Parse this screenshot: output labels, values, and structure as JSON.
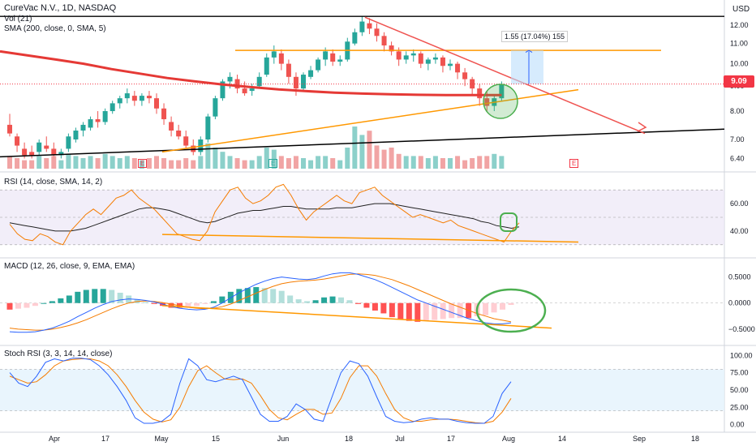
{
  "header": {
    "title": "CureVac N.V., 1D, NASDAQ",
    "vol": "Vol (21)",
    "sma": "SMA (200, close, 0, SMA, 5)",
    "currency": "USD"
  },
  "price_badge": {
    "value": "9.09",
    "color": "#f23645"
  },
  "measure_label": "1.55 (17.04%) 155",
  "panes": {
    "rsi": "RSI (14, close, SMA, 14, 2)",
    "macd": "MACD (12, 26, close, 9, EMA, EMA)",
    "stoch": "Stoch RSI (3, 3, 14, 14, close)"
  },
  "event_markers": {
    "earnings": "E",
    "split": "E",
    "dividend": "E"
  },
  "colors": {
    "up": "#26a69a",
    "down": "#ef5350",
    "sma200": "#e53935",
    "rsi": "#f57c00",
    "signal": "#222222",
    "macd": "#2962ff",
    "k": "#2962ff",
    "d": "#f57c00",
    "trend_orange": "#ff9800",
    "trend_red": "#ef5350",
    "trend_black": "#000000",
    "highlight": "#4caf50",
    "measure_fill": "#bbdefb"
  },
  "chart_data": [
    {
      "type": "candlestick",
      "title": "CureVac N.V., 1D, NASDAQ",
      "x_ticks": [
        "Apr",
        "17",
        "May",
        "15",
        "Jun",
        "18",
        "Jul",
        "17",
        "Aug",
        "14",
        "Sep",
        "18"
      ],
      "y_ticks": [
        12.0,
        11.0,
        10.0,
        9.0,
        8.0,
        7.0,
        6.4
      ],
      "y_scale": "log",
      "ylim": [
        6.1,
        12.8
      ],
      "candles": [
        [
          7.5,
          7.9,
          7.2,
          7.1
        ],
        [
          7.1,
          7.2,
          6.8,
          6.6
        ],
        [
          6.7,
          6.9,
          6.5,
          6.4
        ],
        [
          6.6,
          6.8,
          6.5,
          6.4
        ],
        [
          6.6,
          7.0,
          6.9,
          6.5
        ],
        [
          6.8,
          7.1,
          6.7,
          6.6
        ],
        [
          6.7,
          6.9,
          6.5,
          6.4
        ],
        [
          6.5,
          6.7,
          6.6,
          6.4
        ],
        [
          6.7,
          7.2,
          7.1,
          6.6
        ],
        [
          7.0,
          7.4,
          7.3,
          6.9
        ],
        [
          7.3,
          7.6,
          7.5,
          7.1
        ],
        [
          7.4,
          7.8,
          7.7,
          7.3
        ],
        [
          7.7,
          8.0,
          7.6,
          7.4
        ],
        [
          7.6,
          8.1,
          8.0,
          7.5
        ],
        [
          8.0,
          8.4,
          8.3,
          7.9
        ],
        [
          8.3,
          8.6,
          8.5,
          8.1
        ],
        [
          8.5,
          8.9,
          8.7,
          8.3
        ],
        [
          8.6,
          8.8,
          8.4,
          8.2
        ],
        [
          8.4,
          8.7,
          8.6,
          8.2
        ],
        [
          8.6,
          8.8,
          8.5,
          8.3
        ],
        [
          8.5,
          8.7,
          8.1,
          7.9
        ],
        [
          8.1,
          8.3,
          7.7,
          7.5
        ],
        [
          7.6,
          7.8,
          7.3,
          7.1
        ],
        [
          7.3,
          7.5,
          7.1,
          7.0
        ],
        [
          7.1,
          7.3,
          6.8,
          6.7
        ],
        [
          6.8,
          7.0,
          6.6,
          6.5
        ],
        [
          6.6,
          7.1,
          7.0,
          6.5
        ],
        [
          7.0,
          7.9,
          7.8,
          6.9
        ],
        [
          7.8,
          8.6,
          8.5,
          7.7
        ],
        [
          8.5,
          9.3,
          9.2,
          8.4
        ],
        [
          9.2,
          9.6,
          9.4,
          8.9
        ],
        [
          9.3,
          9.5,
          8.9,
          8.7
        ],
        [
          8.9,
          9.2,
          8.7,
          8.6
        ],
        [
          8.8,
          9.1,
          8.9,
          8.6
        ],
        [
          9.0,
          9.6,
          9.4,
          8.9
        ],
        [
          9.5,
          10.5,
          10.3,
          9.4
        ],
        [
          10.3,
          10.9,
          10.6,
          10.0
        ],
        [
          10.5,
          10.7,
          10.0,
          9.7
        ],
        [
          10.0,
          10.2,
          9.4,
          9.1
        ],
        [
          9.4,
          9.6,
          8.9,
          8.6
        ],
        [
          8.9,
          9.6,
          9.5,
          8.8
        ],
        [
          9.4,
          9.9,
          9.7,
          9.3
        ],
        [
          9.7,
          10.3,
          10.2,
          9.6
        ],
        [
          10.2,
          10.8,
          10.6,
          9.9
        ],
        [
          10.5,
          10.7,
          10.1,
          9.9
        ],
        [
          10.1,
          10.4,
          10.2,
          9.9
        ],
        [
          10.2,
          11.3,
          11.1,
          10.1
        ],
        [
          11.0,
          11.8,
          11.6,
          10.9
        ],
        [
          11.6,
          12.5,
          12.2,
          11.4
        ],
        [
          12.1,
          12.4,
          11.8,
          11.5
        ],
        [
          11.8,
          12.1,
          11.4,
          11.1
        ],
        [
          11.4,
          11.6,
          10.9,
          10.6
        ],
        [
          10.9,
          11.1,
          10.6,
          10.4
        ],
        [
          10.6,
          10.8,
          10.2,
          9.9
        ],
        [
          10.2,
          10.6,
          10.4,
          10.0
        ],
        [
          10.4,
          10.7,
          10.5,
          10.1
        ],
        [
          10.5,
          10.6,
          10.0,
          9.8
        ],
        [
          10.0,
          10.3,
          10.2,
          9.7
        ],
        [
          10.2,
          10.5,
          10.3,
          10.0
        ],
        [
          10.3,
          10.4,
          9.9,
          9.6
        ],
        [
          9.9,
          10.2,
          10.0,
          9.7
        ],
        [
          10.0,
          10.1,
          9.6,
          9.3
        ],
        [
          9.6,
          9.8,
          9.3,
          9.0
        ],
        [
          9.3,
          9.4,
          8.9,
          8.6
        ],
        [
          8.9,
          9.1,
          8.5,
          8.2
        ],
        [
          8.5,
          8.8,
          8.2,
          8.0
        ],
        [
          8.2,
          8.6,
          8.5,
          8.0
        ],
        [
          8.5,
          9.2,
          9.09,
          8.4
        ]
      ],
      "sma200": [
        10.6,
        10.4,
        10.2,
        10.0,
        9.75,
        9.55,
        9.35,
        9.2,
        9.07,
        8.96,
        8.86,
        8.79,
        8.73,
        8.69,
        8.66,
        8.64,
        8.63,
        8.63,
        8.63
      ]
    },
    {
      "type": "bar",
      "title": "Vol (21)",
      "volume": [
        0.3,
        0.25,
        0.2,
        0.2,
        0.3,
        0.25,
        0.3,
        0.2,
        0.35,
        0.3,
        0.25,
        0.3,
        0.25,
        0.35,
        0.3,
        0.25,
        0.3,
        0.25,
        0.2,
        0.25,
        0.3,
        0.25,
        0.2,
        0.2,
        0.25,
        0.2,
        0.3,
        0.6,
        0.5,
        0.4,
        0.3,
        0.25,
        0.2,
        0.2,
        0.3,
        0.5,
        0.45,
        0.3,
        0.25,
        0.3,
        0.25,
        0.2,
        0.3,
        0.3,
        0.25,
        0.2,
        0.5,
        1.0,
        0.8,
        0.9,
        0.55,
        0.45,
        0.5,
        0.35,
        0.3,
        0.3,
        0.3,
        0.25,
        0.3,
        0.25,
        0.25,
        0.3,
        0.2,
        0.25,
        0.3,
        0.3,
        0.35,
        0.3
      ]
    },
    {
      "type": "line",
      "title": "RSI (14, close, SMA, 14, 2)",
      "y_ticks": [
        60.0,
        40.0
      ],
      "ylim": [
        24,
        76
      ],
      "rsi": [
        45,
        38,
        34,
        33,
        38,
        36,
        32,
        30,
        40,
        46,
        52,
        56,
        52,
        58,
        64,
        66,
        70,
        64,
        60,
        56,
        50,
        44,
        38,
        36,
        34,
        33,
        40,
        54,
        62,
        70,
        72,
        64,
        60,
        62,
        66,
        72,
        74,
        66,
        56,
        48,
        54,
        58,
        62,
        66,
        62,
        60,
        68,
        70,
        72,
        66,
        62,
        58,
        54,
        50,
        52,
        50,
        48,
        46,
        48,
        44,
        42,
        40,
        38,
        36,
        34,
        32,
        40,
        46
      ],
      "signal": [
        46,
        45,
        44,
        43,
        42,
        41,
        40,
        40,
        40,
        41,
        42,
        44,
        46,
        48,
        50,
        52,
        54,
        56,
        57,
        57,
        56,
        55,
        53,
        51,
        49,
        47,
        46,
        47,
        49,
        51,
        53,
        54,
        55,
        55,
        56,
        57,
        58,
        58,
        57,
        56,
        56,
        56,
        56,
        57,
        57,
        57,
        58,
        59,
        60,
        60,
        60,
        59,
        58,
        57,
        56,
        55,
        54,
        53,
        52,
        51,
        50,
        49,
        47,
        46,
        44,
        43,
        42,
        43
      ]
    },
    {
      "type": "line",
      "title": "MACD (12, 26, close, 9, EMA, EMA)",
      "y_ticks": [
        0.5,
        0.0,
        -0.5
      ],
      "ylim": [
        -0.72,
        0.68
      ],
      "macd": [
        -0.55,
        -0.56,
        -0.56,
        -0.55,
        -0.52,
        -0.48,
        -0.42,
        -0.35,
        -0.26,
        -0.18,
        -0.1,
        -0.03,
        0.03,
        0.06,
        0.08,
        0.07,
        0.05,
        0.02,
        -0.02,
        -0.07,
        -0.1,
        -0.12,
        -0.13,
        -0.12,
        -0.08,
        0.0,
        0.1,
        0.2,
        0.28,
        0.36,
        0.42,
        0.47,
        0.5,
        0.48,
        0.46,
        0.45,
        0.47,
        0.52,
        0.56,
        0.58,
        0.58,
        0.55,
        0.5,
        0.45,
        0.38,
        0.3,
        0.22,
        0.14,
        0.06,
        0.0,
        -0.06,
        -0.12,
        -0.18,
        -0.24,
        -0.3,
        -0.34,
        -0.38,
        -0.4,
        -0.4,
        -0.38
      ],
      "signal": [
        -0.48,
        -0.5,
        -0.51,
        -0.52,
        -0.52,
        -0.5,
        -0.47,
        -0.43,
        -0.38,
        -0.32,
        -0.25,
        -0.18,
        -0.11,
        -0.05,
        0.0,
        0.03,
        0.04,
        0.03,
        0.01,
        -0.02,
        -0.05,
        -0.08,
        -0.1,
        -0.11,
        -0.1,
        -0.07,
        -0.02,
        0.05,
        0.12,
        0.19,
        0.26,
        0.32,
        0.37,
        0.4,
        0.42,
        0.43,
        0.44,
        0.46,
        0.49,
        0.52,
        0.55,
        0.56,
        0.55,
        0.53,
        0.49,
        0.45,
        0.39,
        0.33,
        0.26,
        0.19,
        0.12,
        0.05,
        -0.02,
        -0.08,
        -0.14,
        -0.2,
        -0.25,
        -0.3,
        -0.33,
        -0.36
      ]
    },
    {
      "type": "line",
      "title": "Stoch RSI (3, 3, 14, 14, close)",
      "y_ticks": [
        100.0,
        75.0,
        50.0,
        25.0,
        0.0
      ],
      "ylim": [
        -5,
        105
      ],
      "k": [
        75,
        60,
        55,
        70,
        90,
        95,
        92,
        96,
        96,
        94,
        85,
        72,
        55,
        35,
        10,
        2,
        2,
        5,
        15,
        60,
        95,
        85,
        65,
        62,
        66,
        70,
        65,
        40,
        15,
        5,
        5,
        12,
        30,
        22,
        8,
        5,
        40,
        75,
        92,
        88,
        70,
        40,
        12,
        5,
        3,
        4,
        8,
        10,
        8,
        8,
        5,
        3,
        2,
        2,
        12,
        45,
        62
      ],
      "d": [
        70,
        65,
        60,
        62,
        72,
        85,
        92,
        94,
        95,
        95,
        92,
        85,
        72,
        55,
        35,
        18,
        8,
        4,
        7,
        25,
        55,
        78,
        85,
        75,
        66,
        65,
        66,
        60,
        42,
        22,
        10,
        7,
        15,
        22,
        22,
        15,
        17,
        38,
        68,
        85,
        85,
        70,
        45,
        22,
        10,
        5,
        5,
        7,
        8,
        8,
        7,
        5,
        3,
        2,
        5,
        18,
        38
      ]
    }
  ]
}
